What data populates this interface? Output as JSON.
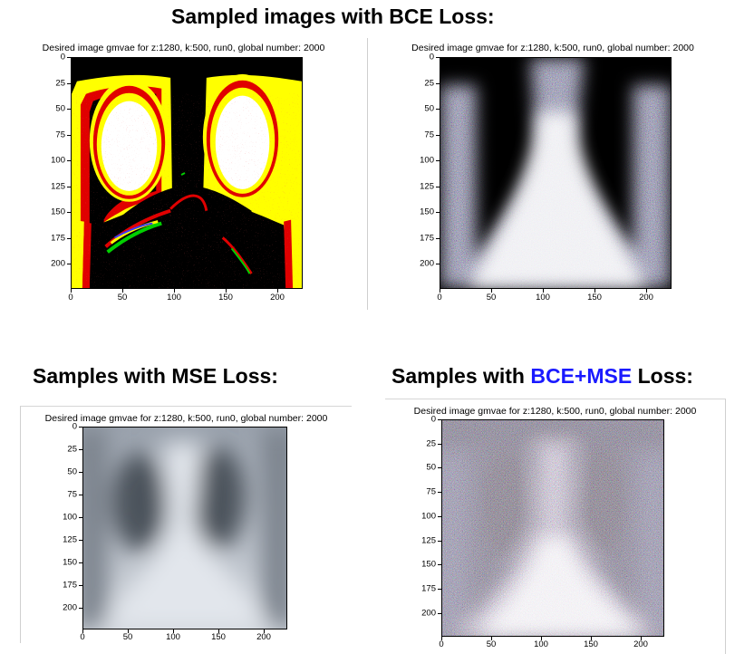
{
  "headings": {
    "bce": "Sampled images with BCE Loss:",
    "mse": "Samples with MSE Loss:",
    "combo_prefix": "Samples with ",
    "combo_highlight": "BCE+MSE",
    "combo_suffix": " Loss:"
  },
  "colors": {
    "highlight": "#1a1aff"
  },
  "panels": [
    {
      "id": "bce-thresholded",
      "title": "Desired image gmvae for z:1280, k:500, run0, global number: 2000",
      "yticks": [
        "0",
        "25",
        "50",
        "75",
        "100",
        "125",
        "150",
        "175",
        "200"
      ],
      "xticks": [
        "0",
        "50",
        "100",
        "150",
        "200"
      ],
      "image": "thresholded chest x-ray: black background, yellow and red borders, white lung fields"
    },
    {
      "id": "bce-noisy",
      "title": "Desired image gmvae for z:1280, k:500, run0, global number: 2000",
      "yticks": [
        "0",
        "25",
        "50",
        "75",
        "100",
        "125",
        "150",
        "175",
        "200"
      ],
      "xticks": [
        "0",
        "50",
        "100",
        "150",
        "200"
      ],
      "image": "noisy chest x-ray: dark lungs, bright white mediastinum, colored speckle"
    },
    {
      "id": "mse",
      "title": "Desired image gmvae for z:1280, k:500, run0, global number: 2000",
      "yticks": [
        "0",
        "25",
        "50",
        "75",
        "100",
        "125",
        "150",
        "175",
        "200"
      ],
      "xticks": [
        "0",
        "50",
        "100",
        "150",
        "200"
      ],
      "image": "blurry grayscale chest x-ray"
    },
    {
      "id": "bce-mse",
      "title": "Desired image gmvae for z:1280, k:500, run0, global number: 2000",
      "yticks": [
        "0",
        "25",
        "50",
        "75",
        "100",
        "125",
        "150",
        "175",
        "200"
      ],
      "xticks": [
        "0",
        "50",
        "100",
        "150",
        "200"
      ],
      "image": "noisy colored chest x-ray with dark lungs and bright lower center"
    }
  ]
}
